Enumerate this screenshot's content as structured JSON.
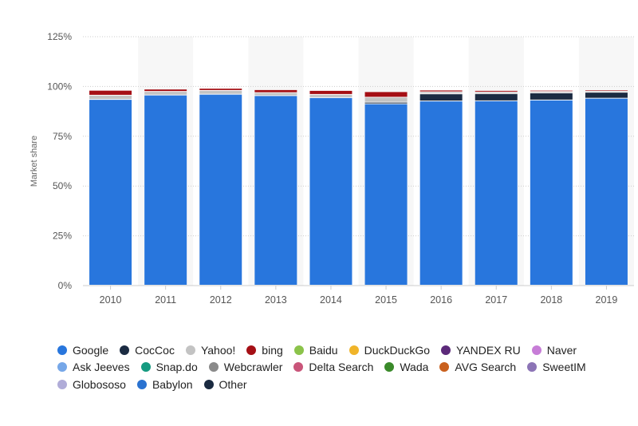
{
  "chart_data": {
    "type": "bar",
    "stacked": true,
    "ylabel": "Market share",
    "xlabel": "",
    "ylim": [
      0,
      125
    ],
    "yticks": [
      "0%",
      "25%",
      "50%",
      "75%",
      "100%",
      "125%"
    ],
    "ytick_values": [
      0,
      25,
      50,
      75,
      100,
      125
    ],
    "grid": true,
    "legend_position": "bottom",
    "categories": [
      "2010",
      "2011",
      "2012",
      "2013",
      "2014",
      "2015",
      "2016",
      "2017",
      "2018",
      "2019"
    ],
    "series": [
      {
        "name": "Google",
        "color": "#2876dd",
        "values": [
          93.3,
          95.5,
          95.9,
          95.2,
          94.2,
          91.1,
          92.5,
          92.6,
          93.0,
          93.9
        ]
      },
      {
        "name": "CocCoc",
        "color": "#1b2b42",
        "values": [
          0,
          0,
          0,
          0,
          0,
          0.8,
          3.6,
          3.6,
          3.6,
          3.0
        ]
      },
      {
        "name": "Yahoo!",
        "color": "#c3c3c3",
        "values": [
          2.1,
          1.8,
          1.9,
          1.5,
          1.6,
          2.5,
          1.0,
          0.8,
          0.7,
          0.6
        ]
      },
      {
        "name": "bing",
        "color": "#a50f15",
        "values": [
          2.5,
          1.2,
          1.1,
          1.5,
          2.0,
          2.8,
          0.9,
          0.8,
          0.6,
          0.6
        ]
      },
      {
        "name": "Baidu",
        "color": "#8bc34a",
        "values": [
          0,
          0,
          0,
          0,
          0,
          0,
          0,
          0,
          0,
          0
        ]
      },
      {
        "name": "DuckDuckGo",
        "color": "#f0b429",
        "values": [
          0,
          0,
          0,
          0,
          0,
          0,
          0,
          0,
          0,
          0
        ]
      },
      {
        "name": "YANDEX RU",
        "color": "#5c2a7a",
        "values": [
          0,
          0,
          0,
          0,
          0,
          0,
          0,
          0,
          0,
          0
        ]
      },
      {
        "name": "Naver",
        "color": "#c77dd7",
        "values": [
          0,
          0,
          0,
          0,
          0,
          0,
          0,
          0,
          0,
          0
        ]
      },
      {
        "name": "Ask Jeeves",
        "color": "#76a7e8",
        "values": [
          0,
          0,
          0,
          0,
          0,
          0,
          0,
          0,
          0,
          0
        ]
      },
      {
        "name": "Snap.do",
        "color": "#159a80",
        "values": [
          0,
          0,
          0,
          0,
          0,
          0,
          0,
          0,
          0,
          0
        ]
      },
      {
        "name": "Webcrawler",
        "color": "#8a8a8a",
        "values": [
          0,
          0,
          0,
          0,
          0,
          0,
          0,
          0,
          0,
          0
        ]
      },
      {
        "name": "Delta Search",
        "color": "#c9557a",
        "values": [
          0,
          0,
          0,
          0,
          0,
          0,
          0,
          0,
          0,
          0
        ]
      },
      {
        "name": "Wada",
        "color": "#3a8a2a",
        "values": [
          0,
          0,
          0,
          0,
          0,
          0,
          0,
          0,
          0,
          0
        ]
      },
      {
        "name": "AVG Search",
        "color": "#c9601e",
        "values": [
          0,
          0,
          0,
          0,
          0,
          0,
          0,
          0,
          0,
          0
        ]
      },
      {
        "name": "SweetIM",
        "color": "#8c74b6",
        "values": [
          0,
          0,
          0,
          0,
          0,
          0,
          0,
          0,
          0,
          0
        ]
      },
      {
        "name": "Globososo",
        "color": "#b0acd8",
        "values": [
          0,
          0,
          0,
          0,
          0,
          0,
          0,
          0,
          0,
          0
        ]
      },
      {
        "name": "Babylon",
        "color": "#2a72d0",
        "values": [
          0,
          0,
          0,
          0,
          0,
          0,
          0,
          0,
          0,
          0
        ]
      },
      {
        "name": "Other",
        "color": "#1a2a40",
        "values": [
          0,
          0,
          0,
          0,
          0,
          0,
          0,
          0,
          0,
          0
        ]
      }
    ]
  }
}
